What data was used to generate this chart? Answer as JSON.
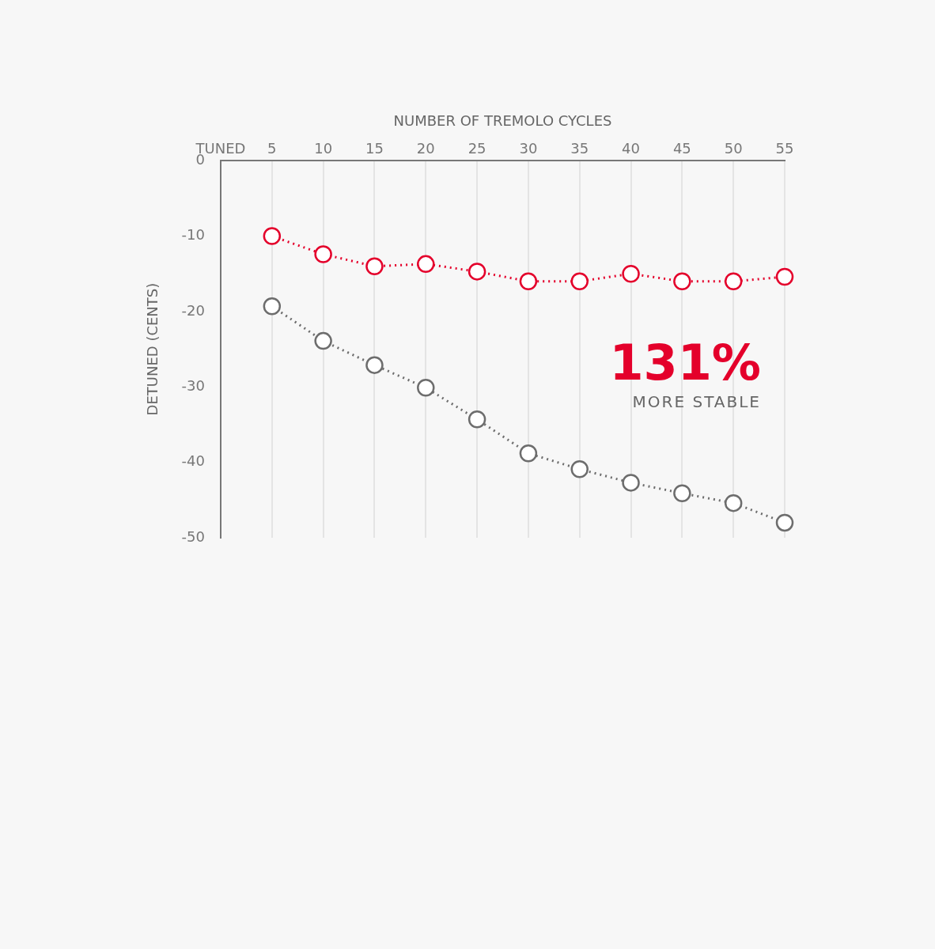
{
  "chart_data": {
    "type": "line",
    "xlabel": "NUMBER OF TREMOLO CYCLES",
    "ylabel": "DETUNED (CENTS)",
    "categories": [
      "TUNED",
      "5",
      "10",
      "15",
      "20",
      "25",
      "30",
      "35",
      "40",
      "45",
      "50",
      "55"
    ],
    "series": [
      {
        "color": "#e4002b",
        "values": [
          null,
          -10,
          -12.4,
          -14,
          -13.7,
          -14.7,
          -16,
          -16,
          -15,
          -16,
          -16,
          -15.4
        ]
      },
      {
        "color": "#6d6d6d",
        "values": [
          null,
          -19.3,
          -23.9,
          -27.1,
          -30.1,
          -34.3,
          -38.8,
          -40.9,
          -42.7,
          -44.1,
          -45.4,
          -48
        ]
      }
    ],
    "ylim": [
      -50,
      0
    ],
    "yticks": [
      0,
      -10,
      -20,
      -30,
      -40,
      -50
    ],
    "grid": "x",
    "marker": "circle",
    "line_style": "dotted",
    "annotations": [
      "131%",
      "MORE STABLE"
    ]
  }
}
